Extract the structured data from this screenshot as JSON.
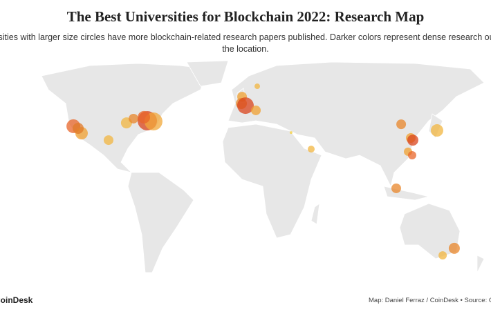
{
  "title": "The Best Universities for Blockchain 2022: Research Map",
  "subtitle": "Universities with larger size circles have more blockchain-related research papers published. Darker colors represent dense research output in the location.",
  "footer": {
    "brand": "CoinDesk",
    "credit": "Map: Daniel Ferraz / CoinDesk • Source: CoinDesk"
  },
  "chart_data": {
    "type": "bubble-map",
    "points": [
      {
        "lon": -124.2,
        "lat": 36.5,
        "size": 10,
        "color": "#e8652a"
      },
      {
        "lon": -118.2,
        "lat": 32.5,
        "size": 9,
        "color": "#f0a030"
      },
      {
        "lon": -120.7,
        "lat": 35.3,
        "size": 8,
        "color": "#e07a2a"
      },
      {
        "lon": -98.5,
        "lat": 28.6,
        "size": 7,
        "color": "#f2b540"
      },
      {
        "lon": -85.4,
        "lat": 38.4,
        "size": 8,
        "color": "#f2b540"
      },
      {
        "lon": -80.3,
        "lat": 40.8,
        "size": 7,
        "color": "#e8852a"
      },
      {
        "lon": -70.2,
        "lat": 39.6,
        "size": 14,
        "color": "#d9441c"
      },
      {
        "lon": -65.7,
        "lat": 39.2,
        "size": 13,
        "color": "#f2a83a"
      },
      {
        "lon": -72.7,
        "lat": 41.6,
        "size": 9,
        "color": "#e8652a"
      },
      {
        "lon": -1.0,
        "lat": 53.3,
        "size": 7,
        "color": "#f0a030"
      },
      {
        "lon": -1.5,
        "lat": 49.4,
        "size": 8,
        "color": "#e8852a"
      },
      {
        "lon": 1.5,
        "lat": 48.2,
        "size": 12,
        "color": "#d9441c"
      },
      {
        "lon": 9.1,
        "lat": 45.5,
        "size": 7,
        "color": "#f0a030"
      },
      {
        "lon": 10.1,
        "lat": 59.2,
        "size": 4,
        "color": "#f2b540"
      },
      {
        "lon": 34.8,
        "lat": 32.9,
        "size": 2,
        "color": "#f5d040"
      },
      {
        "lon": 49.5,
        "lat": 23.5,
        "size": 5,
        "color": "#f2b540"
      },
      {
        "lon": 115.2,
        "lat": 37.6,
        "size": 7,
        "color": "#e8852a"
      },
      {
        "lon": 122.2,
        "lat": 29.8,
        "size": 7,
        "color": "#f0a030"
      },
      {
        "lon": 123.7,
        "lat": 28.6,
        "size": 8,
        "color": "#d9441c"
      },
      {
        "lon": 120.2,
        "lat": 22.0,
        "size": 6,
        "color": "#f0a030"
      },
      {
        "lon": 123.2,
        "lat": 20.0,
        "size": 6,
        "color": "#e8652a"
      },
      {
        "lon": 141.4,
        "lat": 34.1,
        "size": 9,
        "color": "#f2b540"
      },
      {
        "lon": 111.6,
        "lat": 1.2,
        "size": 7,
        "color": "#e8852a"
      },
      {
        "lon": 145.5,
        "lat": -36.9,
        "size": 6,
        "color": "#f2b540"
      },
      {
        "lon": 154.0,
        "lat": -32.9,
        "size": 8,
        "color": "#e8852a"
      }
    ]
  }
}
